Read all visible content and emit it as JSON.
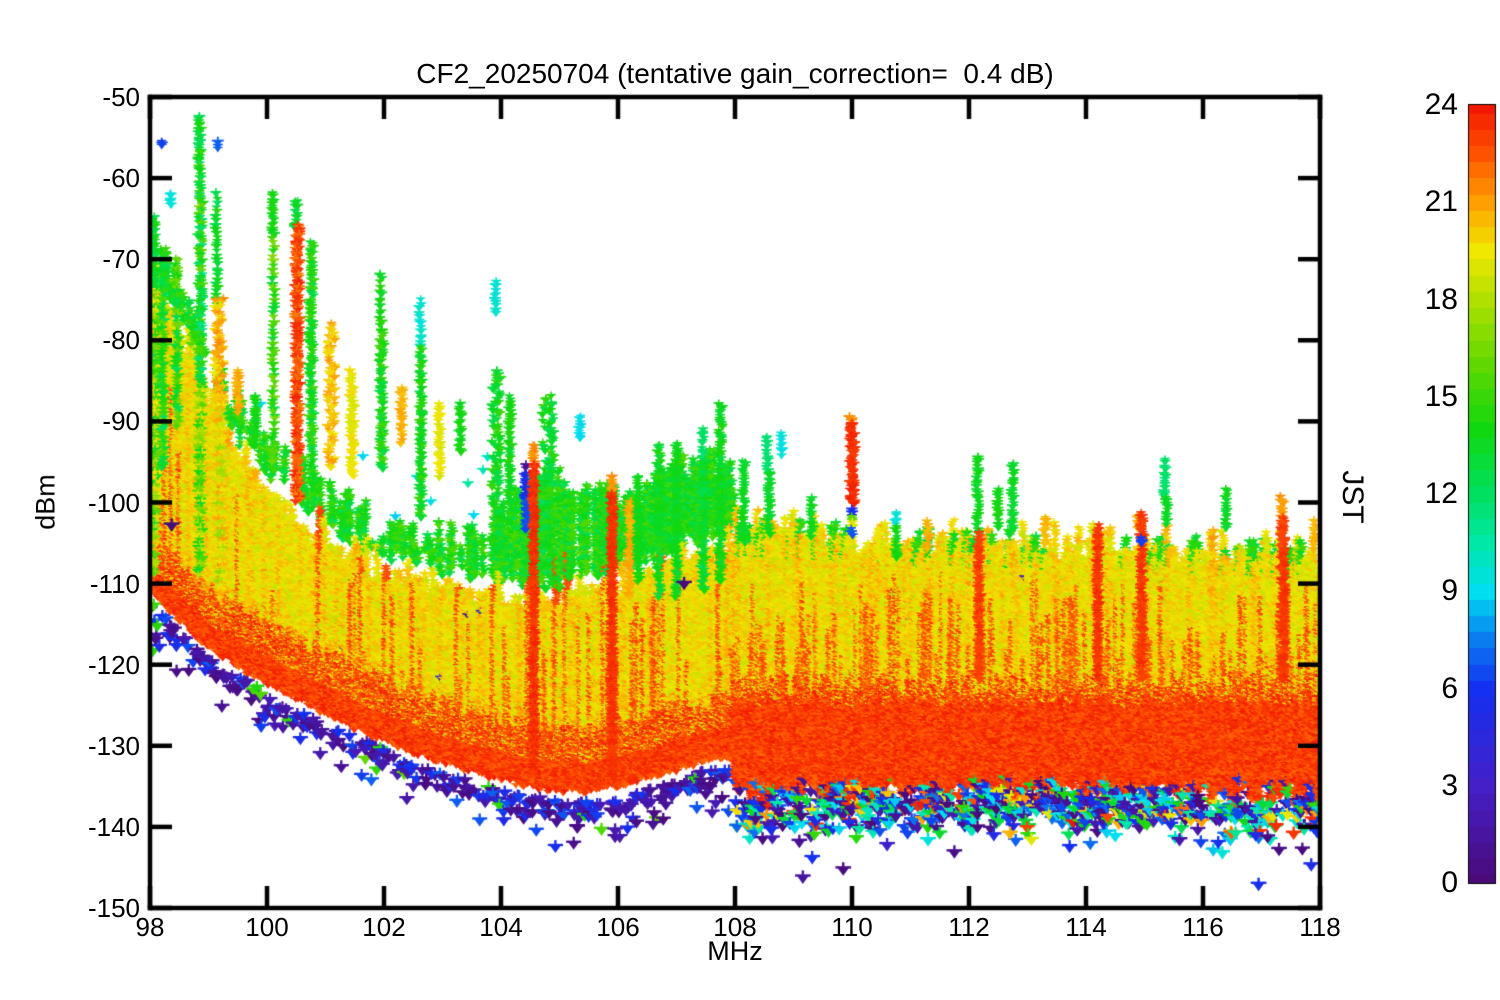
{
  "chart_data": {
    "type": "scatter",
    "title": "CF2_20250704 (tentative gain_correction=  0.4 dB)",
    "xlabel": "MHz",
    "ylabel": "dBm",
    "colorbar_label": "JST",
    "xlim": [
      98,
      118
    ],
    "ylim": [
      -150,
      -50
    ],
    "cblim": [
      0,
      24
    ],
    "xticks": [
      98,
      100,
      102,
      104,
      106,
      108,
      110,
      112,
      114,
      116,
      118
    ],
    "yticks": [
      -150,
      -140,
      -130,
      -120,
      -110,
      -100,
      -90,
      -80,
      -70,
      -60,
      -50
    ],
    "cbticks": [
      0,
      3,
      6,
      9,
      12,
      15,
      18,
      21,
      24
    ],
    "grid": false,
    "legend": "colorbar-right",
    "marker": "filled-down-triangle",
    "palette_stops": [
      [
        0,
        "#4a0a78"
      ],
      [
        3,
        "#4520c8"
      ],
      [
        6,
        "#1430f0"
      ],
      [
        7.5,
        "#0a7cf0"
      ],
      [
        9,
        "#00dff0"
      ],
      [
        10.5,
        "#00e8a8"
      ],
      [
        12,
        "#00e060"
      ],
      [
        14,
        "#10d810"
      ],
      [
        16,
        "#60d800"
      ],
      [
        18,
        "#b0e000"
      ],
      [
        19.5,
        "#f0e800"
      ],
      [
        21,
        "#ffa000"
      ],
      [
        22.5,
        "#ff5200"
      ],
      [
        24,
        "#f21800"
      ]
    ],
    "band_step_mhz": 108,
    "noise_floor_dbm": {
      "x": [
        98,
        98.5,
        99,
        99.5,
        100,
        100.5,
        101,
        101.5,
        102,
        102.5,
        103,
        103.5,
        104,
        104.5,
        105,
        105.5,
        106,
        106.5,
        107,
        107.5,
        108
      ],
      "y": [
        -110.5,
        -114.2,
        -117.6,
        -119.9,
        -121.9,
        -123.7,
        -125.7,
        -127.5,
        -129,
        -130.4,
        -131.7,
        -132.9,
        -133.8,
        -134.7,
        -135.2,
        -135.3,
        -134.7,
        -133.7,
        -132.6,
        -131.6,
        -130.9
      ]
    },
    "red_band_above_108": {
      "top": -122.8,
      "bottom": -134.6
    },
    "yellow_top_dbm": {
      "x": [
        98,
        98.5,
        99,
        99.5,
        100,
        100.5,
        101,
        101.5,
        102,
        102.5,
        103,
        104,
        105,
        106,
        107,
        107.9,
        108,
        109,
        110,
        111,
        112,
        113,
        114,
        115,
        116,
        117,
        118
      ],
      "y": [
        -73,
        -80,
        -87,
        -95,
        -99.5,
        -102.5,
        -106,
        -108,
        -109.5,
        -110.5,
        -111.5,
        -112.5,
        -113,
        -111,
        -108.5,
        -106.5,
        -104.8,
        -105.2,
        -105.6,
        -105.9,
        -106.2,
        -106.5,
        -106.8,
        -107,
        -107.3,
        -107.5,
        -107.8
      ]
    },
    "green_top_dbm": {
      "x": [
        98,
        98.5,
        99,
        99.5,
        100,
        100.5,
        101,
        101.5,
        102,
        102.5,
        103,
        103.5,
        104,
        104.5,
        105,
        105.5,
        106,
        106.5,
        107,
        107.5,
        108
      ],
      "y": [
        -66,
        -73,
        -81,
        -88,
        -92.5,
        -95.5,
        -98.5,
        -101,
        -103,
        -104,
        -104.5,
        -103.5,
        -101.5,
        -98.5,
        -97.5,
        -99,
        -100,
        -98,
        -96,
        -95,
        -97
      ]
    },
    "spikes": [
      {
        "m": 98.06,
        "d0": -65,
        "d1": -74,
        "h0": 12,
        "h1": 14.5,
        "w": 0.1,
        "dy": 2.2
      },
      {
        "m": 98.07,
        "d0": -74,
        "d1": -109,
        "h0": 13,
        "h1": 20.5,
        "w": 0.13,
        "dy": 2.0
      },
      {
        "m": 98.2,
        "d0": -55.5,
        "d1": -56.3,
        "h0": 6.3,
        "h1": 6.5,
        "w": 0.02,
        "dy": 3
      },
      {
        "m": 98.22,
        "d0": -72,
        "d1": -96,
        "h0": 12,
        "h1": 16,
        "w": 0.06,
        "dy": 3
      },
      {
        "m": 98.35,
        "d0": -62,
        "d1": -63.5,
        "h0": 9.3,
        "h1": 9.6,
        "w": 0.02,
        "dy": 3
      },
      {
        "m": 98.46,
        "d0": -70,
        "d1": -91,
        "h0": 12,
        "h1": 17,
        "w": 0.07,
        "dy": 3.2
      },
      {
        "m": 98.85,
        "d0": -52.5,
        "d1": -62,
        "h0": 12,
        "h1": 16,
        "w": 0.05,
        "dy": 2.6
      },
      {
        "m": 98.86,
        "d0": -62,
        "d1": -86,
        "h0": 11,
        "h1": 17,
        "w": 0.09,
        "dy": 2.0
      },
      {
        "m": 98.86,
        "d0": -86,
        "d1": -109,
        "h0": 13,
        "h1": 20,
        "w": 0.09,
        "dy": 2.2
      },
      {
        "m": 99.15,
        "d0": -55.8,
        "d1": -56.6,
        "h0": 6.8,
        "h1": 7.0,
        "w": 0.02,
        "dy": 3
      },
      {
        "m": 99.14,
        "d0": -62,
        "d1": -76,
        "h0": 12,
        "h1": 15,
        "w": 0.05,
        "dy": 4
      },
      {
        "m": 99.18,
        "d0": -75,
        "d1": -89,
        "h0": 19.5,
        "h1": 21.5,
        "w": 0.15,
        "dy": 2.0
      },
      {
        "m": 99.2,
        "d0": -89,
        "d1": -112,
        "h0": 17,
        "h1": 21,
        "w": 0.1,
        "dy": 2.4
      },
      {
        "m": 99.5,
        "d0": -84,
        "d1": -89,
        "h0": 20.4,
        "h1": 21.2,
        "w": 0.06,
        "dy": 2.6
      },
      {
        "m": 99.8,
        "d0": -87,
        "d1": -93,
        "h0": 13,
        "h1": 14.5,
        "w": 0.05,
        "dy": 2.8
      },
      {
        "m": 100.1,
        "d0": -62,
        "d1": -67.5,
        "h0": 13.4,
        "h1": 14.6,
        "w": 0.04,
        "dy": 2.6
      },
      {
        "m": 100.11,
        "d0": -67.5,
        "d1": -96,
        "h0": 13,
        "h1": 17,
        "w": 0.05,
        "dy": 4.2
      },
      {
        "m": 100.5,
        "d0": -63,
        "d1": -66.5,
        "h0": 12.5,
        "h1": 14,
        "w": 0.06,
        "dy": 2.4
      },
      {
        "m": 100.52,
        "d0": -66,
        "d1": -100,
        "h0": 21.5,
        "h1": 23.8,
        "w": 0.09,
        "dy": 1.6
      },
      {
        "m": 100.76,
        "d0": -68,
        "d1": -98,
        "h0": 12.5,
        "h1": 15.5,
        "w": 0.07,
        "dy": 2.4
      },
      {
        "m": 101.1,
        "d0": -78,
        "d1": -96,
        "h0": 19.5,
        "h1": 21.2,
        "w": 0.12,
        "dy": 2.4
      },
      {
        "m": 101.45,
        "d0": -84,
        "d1": -97,
        "h0": 18.8,
        "h1": 19.9,
        "w": 0.07,
        "dy": 2.6
      },
      {
        "m": 101.95,
        "d0": -72,
        "d1": -79,
        "h0": 13,
        "h1": 15,
        "w": 0.05,
        "dy": 4
      },
      {
        "m": 101.96,
        "d0": -79,
        "d1": -96,
        "h0": 12.5,
        "h1": 15.5,
        "w": 0.08,
        "dy": 2.4
      },
      {
        "m": 102.3,
        "d0": -86,
        "d1": -93,
        "h0": 20.2,
        "h1": 21,
        "w": 0.05,
        "dy": 2.8
      },
      {
        "m": 102.62,
        "d0": -75,
        "d1": -81,
        "h0": 9.3,
        "h1": 10.2,
        "w": 0.04,
        "dy": 3.8
      },
      {
        "m": 102.63,
        "d0": -81,
        "d1": -102,
        "h0": 12.8,
        "h1": 15,
        "w": 0.06,
        "dy": 2.4
      },
      {
        "m": 102.95,
        "d0": -88,
        "d1": -97,
        "h0": 18.8,
        "h1": 19.7,
        "w": 0.05,
        "dy": 2.8
      },
      {
        "m": 103.3,
        "d0": -88,
        "d1": -94,
        "h0": 13.5,
        "h1": 14.6,
        "w": 0.05,
        "dy": 2.8
      },
      {
        "m": 103.9,
        "d0": -73,
        "d1": -77,
        "h0": 9.3,
        "h1": 10,
        "w": 0.04,
        "dy": 3.8
      },
      {
        "m": 103.92,
        "d0": -84,
        "d1": -106,
        "h0": 12.5,
        "h1": 15.2,
        "w": 0.15,
        "dy": 2.2
      },
      {
        "m": 104.15,
        "d0": -87,
        "d1": -100,
        "h0": 13,
        "h1": 14.6,
        "w": 0.06,
        "dy": 2.6
      },
      {
        "m": 104.42,
        "d0": -95.5,
        "d1": -96.3,
        "h0": 1.0,
        "h1": 1.4,
        "w": 0.02,
        "dy": 3
      },
      {
        "m": 104.42,
        "d0": -96.5,
        "d1": -100,
        "h0": 5.6,
        "h1": 6.1,
        "w": 0.035,
        "dy": 2.2
      },
      {
        "m": 104.43,
        "d0": -100,
        "d1": -103.5,
        "h0": 6.3,
        "h1": 6.9,
        "w": 0.035,
        "dy": 2.2
      },
      {
        "m": 104.56,
        "d0": -93,
        "d1": -95.5,
        "h0": 21.1,
        "h1": 21.8,
        "w": 0.04,
        "dy": 2.4
      },
      {
        "m": 104.56,
        "d0": -95.5,
        "d1": -133.5,
        "h0": 22.8,
        "h1": 23.8,
        "w": 0.05,
        "dy": 1.6
      },
      {
        "m": 104.8,
        "d0": -87,
        "d1": -111,
        "h0": 12,
        "h1": 15.5,
        "w": 0.2,
        "dy": 2.2
      },
      {
        "m": 105.35,
        "d0": -89.5,
        "d1": -92.5,
        "h0": 8.6,
        "h1": 9.3,
        "w": 0.03,
        "dy": 3
      },
      {
        "m": 105.9,
        "d0": -97,
        "d1": -99,
        "h0": 21,
        "h1": 21.6,
        "w": 0.03,
        "dy": 2.4
      },
      {
        "m": 105.9,
        "d0": -99,
        "d1": -134,
        "h0": 22.9,
        "h1": 23.7,
        "w": 0.045,
        "dy": 1.6
      },
      {
        "m": 106.2,
        "d0": -100,
        "d1": -112,
        "h0": 20.3,
        "h1": 21.2,
        "w": 0.05,
        "dy": 2.6
      },
      {
        "m": 106.35,
        "d0": -97,
        "d1": -110,
        "h0": 13.3,
        "h1": 14.4,
        "w": 0.05,
        "dy": 2.6
      },
      {
        "m": 106.7,
        "d0": -93,
        "d1": -112,
        "h0": 12.5,
        "h1": 14.8,
        "w": 0.08,
        "dy": 2.4
      },
      {
        "m": 107.0,
        "d0": -93,
        "d1": -112,
        "h0": 13,
        "h1": 14.3,
        "w": 0.06,
        "dy": 2.5
      },
      {
        "m": 107.45,
        "d0": -91,
        "d1": -95,
        "h0": 11.5,
        "h1": 12.1,
        "w": 0.04,
        "dy": 3.4
      },
      {
        "m": 107.46,
        "d0": -95,
        "d1": -111,
        "h0": 12.3,
        "h1": 14.4,
        "w": 0.08,
        "dy": 2.4
      },
      {
        "m": 107.75,
        "d0": -88,
        "d1": -110,
        "h0": 12.8,
        "h1": 14.6,
        "w": 0.07,
        "dy": 2.4
      },
      {
        "m": 108.15,
        "d0": -95,
        "d1": -105,
        "h0": 13,
        "h1": 14.3,
        "w": 0.05,
        "dy": 2.8
      },
      {
        "m": 108.55,
        "d0": -92,
        "d1": -96.5,
        "h0": 11.3,
        "h1": 11.9,
        "w": 0.04,
        "dy": 3.4
      },
      {
        "m": 108.58,
        "d0": -96.5,
        "d1": -104,
        "h0": 12.8,
        "h1": 13.9,
        "w": 0.05,
        "dy": 2.8
      },
      {
        "m": 108.8,
        "d0": -91.5,
        "d1": -94.5,
        "h0": 9.1,
        "h1": 9.6,
        "w": 0.035,
        "dy": 3.4
      },
      {
        "m": 109.3,
        "d0": -99.5,
        "d1": -104.5,
        "h0": 13,
        "h1": 14,
        "w": 0.04,
        "dy": 3
      },
      {
        "m": 110.0,
        "d0": -89.6,
        "d1": -90.6,
        "h0": 21.2,
        "h1": 21.8,
        "w": 0.09,
        "dy": 2
      },
      {
        "m": 110.0,
        "d0": -90.5,
        "d1": -100.5,
        "h0": 23.0,
        "h1": 23.9,
        "w": 0.1,
        "dy": 1.3
      },
      {
        "m": 110.0,
        "d0": -101,
        "d1": -101.8,
        "h0": 5.8,
        "h1": 6.2,
        "w": 0.03,
        "dy": 3
      },
      {
        "m": 110.0,
        "d0": -101.8,
        "d1": -102.6,
        "h0": 15.8,
        "h1": 16.3,
        "w": 0.03,
        "dy": 3
      },
      {
        "m": 110.02,
        "d0": -102.6,
        "d1": -103.4,
        "h0": 19,
        "h1": 19.5,
        "w": 0.03,
        "dy": 3
      },
      {
        "m": 110.0,
        "d0": -103.4,
        "d1": -104.4,
        "h0": 6.6,
        "h1": 7,
        "w": 0.03,
        "dy": 3
      },
      {
        "m": 110.45,
        "d0": -103.5,
        "d1": -107,
        "h0": 19,
        "h1": 19.8,
        "w": 0.04,
        "dy": 2.8
      },
      {
        "m": 110.75,
        "d0": -101.5,
        "d1": -103,
        "h0": 9.2,
        "h1": 9.8,
        "w": 0.03,
        "dy": 3
      },
      {
        "m": 110.76,
        "d0": -103,
        "d1": -107,
        "h0": 13.2,
        "h1": 14.2,
        "w": 0.035,
        "dy": 3
      },
      {
        "m": 111.3,
        "d0": -102.5,
        "d1": -106,
        "h0": 20.2,
        "h1": 21,
        "w": 0.04,
        "dy": 2.8
      },
      {
        "m": 112.15,
        "d0": -94.5,
        "d1": -104,
        "h0": 13,
        "h1": 14.2,
        "w": 0.05,
        "dy": 2.8
      },
      {
        "m": 112.17,
        "d0": -104,
        "d1": -122,
        "h0": 22.5,
        "h1": 23.6,
        "w": 0.05,
        "dy": 1.8
      },
      {
        "m": 112.5,
        "d0": -98.5,
        "d1": -103.5,
        "h0": 13.5,
        "h1": 14.5,
        "w": 0.04,
        "dy": 3
      },
      {
        "m": 112.75,
        "d0": -95.5,
        "d1": -104,
        "h0": 12.8,
        "h1": 13.8,
        "w": 0.045,
        "dy": 3
      },
      {
        "m": 113.3,
        "d0": -102,
        "d1": -105.5,
        "h0": 20.2,
        "h1": 20.9,
        "w": 0.04,
        "dy": 2.8
      },
      {
        "m": 114.2,
        "d0": -103,
        "d1": -122,
        "h0": 22.8,
        "h1": 23.7,
        "w": 0.045,
        "dy": 1.8
      },
      {
        "m": 114.9,
        "d0": -101.8,
        "d1": -103.5,
        "h0": 20.5,
        "h1": 21.2,
        "w": 0.05,
        "dy": 2.6
      },
      {
        "m": 114.95,
        "d0": -101.5,
        "d1": -122,
        "h0": 22.7,
        "h1": 23.6,
        "w": 0.05,
        "dy": 1.8
      },
      {
        "m": 114.95,
        "d0": -104.6,
        "d1": -105.4,
        "h0": 6.1,
        "h1": 6.4,
        "w": 0.02,
        "dy": 3
      },
      {
        "m": 115.35,
        "d0": -94.7,
        "d1": -99.5,
        "h0": 11.4,
        "h1": 12,
        "w": 0.04,
        "dy": 3.2
      },
      {
        "m": 115.38,
        "d0": -99.5,
        "d1": -103,
        "h0": 13,
        "h1": 14,
        "w": 0.04,
        "dy": 3
      },
      {
        "m": 116.4,
        "d0": -98.5,
        "d1": -103.5,
        "h0": 13,
        "h1": 14.2,
        "w": 0.045,
        "dy": 3
      },
      {
        "m": 117.35,
        "d0": -99.5,
        "d1": -102,
        "h0": 20.8,
        "h1": 21.5,
        "w": 0.06,
        "dy": 2.4
      },
      {
        "m": 117.37,
        "d0": -102,
        "d1": -122,
        "h0": 22.6,
        "h1": 23.6,
        "w": 0.09,
        "dy": 1.6
      },
      {
        "m": 117.9,
        "d0": -102.5,
        "d1": -106,
        "h0": 20.2,
        "h1": 20.9,
        "w": 0.04,
        "dy": 2.8
      }
    ],
    "outliers": [
      [
        98.37,
        -103,
        0.1
      ],
      [
        107.13,
        -110.2,
        0.2
      ],
      [
        104.95,
        -139.5,
        1.0
      ],
      [
        105.3,
        -140.2,
        0.6
      ],
      [
        105.95,
        -140.6,
        2.0
      ],
      [
        106.6,
        -139.8,
        1.2
      ],
      [
        108.35,
        -139.2,
        0.8
      ],
      [
        108.62,
        -140.5,
        5.8
      ],
      [
        109.1,
        -142.0,
        1.1
      ],
      [
        109.32,
        -144.0,
        6.0
      ],
      [
        109.85,
        -145.4,
        0.4
      ],
      [
        109.16,
        -146.4,
        1.6
      ],
      [
        110.6,
        -142.4,
        3.3
      ],
      [
        111.3,
        -141.8,
        9.3
      ],
      [
        111.75,
        -143.3,
        0.7
      ],
      [
        112.7,
        -141.0,
        20.6
      ],
      [
        113.85,
        -140.6,
        2.2
      ],
      [
        114.5,
        -141.3,
        9.0
      ],
      [
        115.6,
        -141.8,
        1.8
      ],
      [
        116.9,
        -141.2,
        5.2
      ],
      [
        116.95,
        -147.3,
        5.8
      ],
      [
        117.3,
        -143.0,
        0.5
      ],
      [
        117.55,
        -141.0,
        23.2
      ],
      [
        117.85,
        -144.9,
        5.5
      ],
      [
        117.95,
        -140.8,
        6.1
      ]
    ]
  }
}
